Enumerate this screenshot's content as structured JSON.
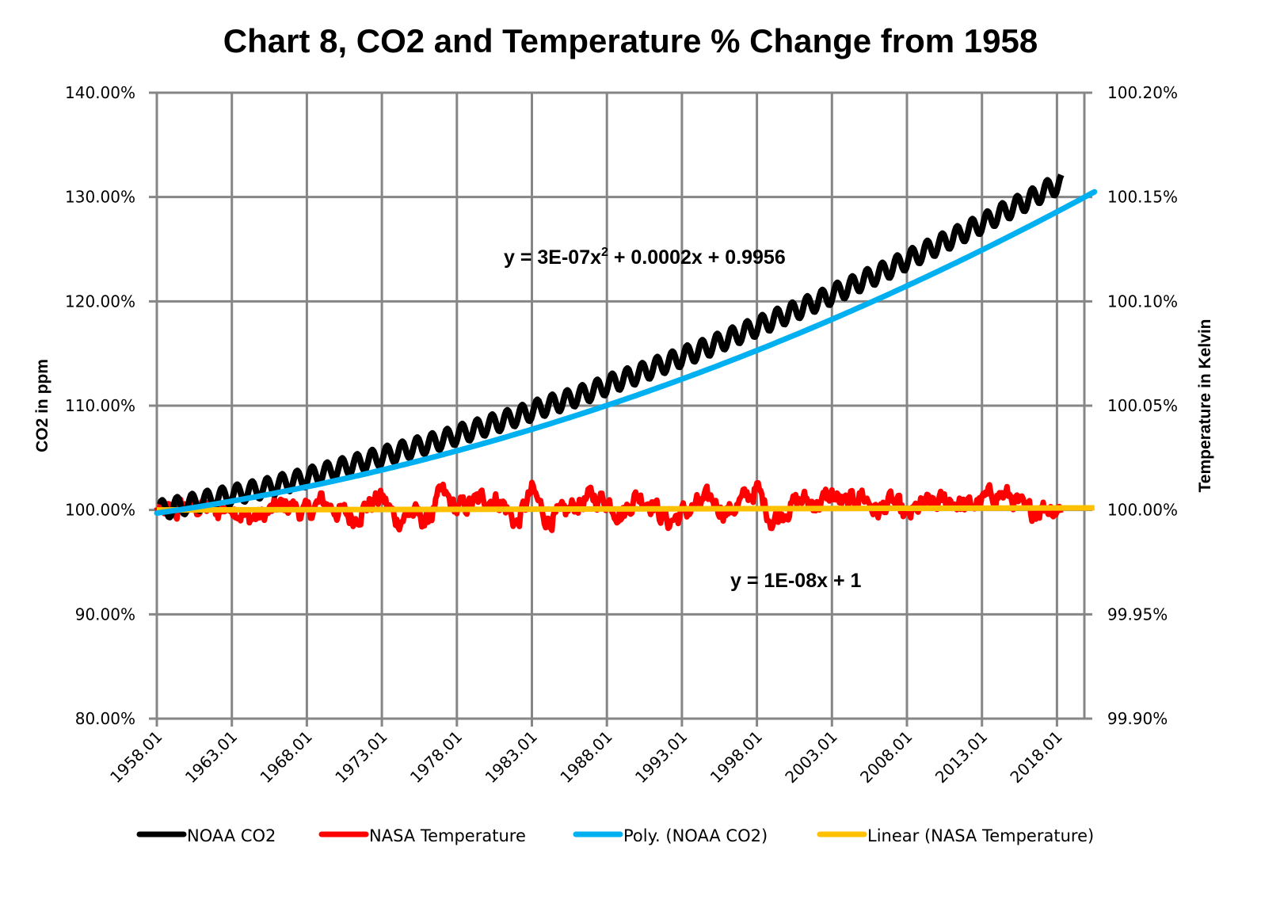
{
  "chart_data": {
    "type": "line",
    "title": "Chart 8, CO2 and Temperature % Change from 1958",
    "xlabel": "",
    "ylabel": "CO2 in ppm",
    "y2label": "Temperature in Kelvin",
    "x_range": [
      1958.0,
      2020.5
    ],
    "x_ticks": [
      "1958.01",
      "1963.01",
      "1968.01",
      "1973.01",
      "1978.01",
      "1983.01",
      "1988.01",
      "1993.01",
      "1998.01",
      "2003.01",
      "2008.01",
      "2013.01",
      "2018.01"
    ],
    "x_tick_values": [
      1958,
      1963,
      1968,
      1973,
      1978,
      1983,
      1988,
      1993,
      1998,
      2003,
      2008,
      2013,
      2018
    ],
    "ylim": [
      0.8,
      1.4
    ],
    "y_ticks": [
      "80.00%",
      "90.00%",
      "100.00%",
      "110.00%",
      "120.00%",
      "130.00%",
      "140.00%"
    ],
    "y_tick_values": [
      0.8,
      0.9,
      1.0,
      1.1,
      1.2,
      1.3,
      1.4
    ],
    "y2lim": [
      0.999,
      1.002
    ],
    "y2_ticks": [
      "99.90%",
      "99.95%",
      "100.00%",
      "100.05%",
      "100.10%",
      "100.15%",
      "100.20%"
    ],
    "y2_tick_values": [
      0.999,
      0.9995,
      1.0,
      1.0005,
      1.001,
      1.0015,
      1.002
    ],
    "grid": true,
    "legend_position": "bottom",
    "series": [
      {
        "name": "NOAA CO2",
        "axis": "left",
        "color": "#000000",
        "x_start": 1958.2,
        "x_step_months": 1,
        "model": "monthly CO2 ratio to 1958 baseline with seasonal cycle",
        "annual_means": [
          1.0,
          1.003,
          1.006,
          1.009,
          1.012,
          1.015,
          1.018,
          1.021,
          1.025,
          1.028,
          1.032,
          1.036,
          1.04,
          1.044,
          1.048,
          1.052,
          1.056,
          1.06,
          1.064,
          1.068,
          1.073,
          1.077,
          1.082,
          1.086,
          1.091,
          1.096,
          1.101,
          1.105,
          1.11,
          1.115,
          1.121,
          1.126,
          1.131,
          1.137,
          1.142,
          1.148,
          1.153,
          1.159,
          1.165,
          1.171,
          1.177,
          1.183,
          1.189,
          1.195,
          1.201,
          1.208,
          1.214,
          1.221,
          1.227,
          1.234,
          1.241,
          1.248,
          1.255,
          1.262,
          1.269,
          1.276,
          1.284,
          1.291,
          1.298,
          1.306,
          1.313
        ],
        "seasonal_amplitude": 0.009
      },
      {
        "name": "NASA Temperature",
        "axis": "right",
        "color": "#ff0000",
        "x_start": 1958.0,
        "x_step_months": 1,
        "model": "monthly temperature ratio (Kelvin) to 1958 baseline",
        "annual_means": [
          1.0,
          0.99998,
          1.00002,
          1.00001,
          0.99999,
          1.00003,
          0.99996,
          0.99997,
          1.00001,
          1.00002,
          0.99998,
          1.00004,
          1.0,
          0.99996,
          1.00002,
          1.00006,
          0.99995,
          0.99999,
          0.99994,
          1.00008,
          1.0,
          1.00003,
          1.00006,
          1.00004,
          0.99993,
          1.00009,
          0.99996,
          0.99997,
          1.00003,
          1.00006,
          1.00005,
          0.99998,
          1.00007,
          1.00004,
          0.99994,
          0.99998,
          1.00002,
          1.00005,
          0.99999,
          1.00004,
          1.0001,
          0.99995,
          1.00001,
          1.00005,
          1.00003,
          1.00007,
          1.00002,
          1.00008,
          0.99999,
          1.00004,
          0.99996,
          1.00002,
          1.00003,
          1.00005,
          1.00001,
          1.00004,
          1.00008,
          1.00006,
          0.99998,
          1.00002,
          1.00001
        ],
        "noise_amplitude": 6e-05
      },
      {
        "name": "Poly. (NOAA CO2)",
        "axis": "left",
        "color": "#00b0f0",
        "trendline": "polynomial",
        "equation": "y = 3E-07x² + 0.0002x + 0.9956",
        "x_range": [
          1958.0,
          2020.5
        ],
        "y_start": 0.997,
        "y_end": 1.305
      },
      {
        "name": "Linear (NASA Temperature)",
        "axis": "right",
        "color": "#ffc000",
        "trendline": "linear",
        "equation": "y = 1E-08x + 1",
        "x_range": [
          1958.0,
          2020.5
        ],
        "y_start": 1.0,
        "y_end": 1.00001
      }
    ],
    "annotations": [
      {
        "name": "poly-equation",
        "text_main": "y = 3E-07x",
        "text_sup": "2",
        "text_rest": " + 0.0002x  + 0.9956",
        "anchor_x": 1971.0,
        "anchor_y": 1.245
      },
      {
        "name": "linear-equation",
        "text": "y = 1E-08x + 1",
        "anchor_x": 1997.0,
        "anchor_y": 0.933
      }
    ],
    "legend": [
      {
        "label": "NOAA CO2",
        "color": "#000000"
      },
      {
        "label": "NASA Temperature",
        "color": "#ff0000"
      },
      {
        "label": "Poly. (NOAA CO2)",
        "color": "#00b0f0"
      },
      {
        "label": "Linear (NASA Temperature)",
        "color": "#ffc000"
      }
    ],
    "grid_color": "#868686"
  }
}
